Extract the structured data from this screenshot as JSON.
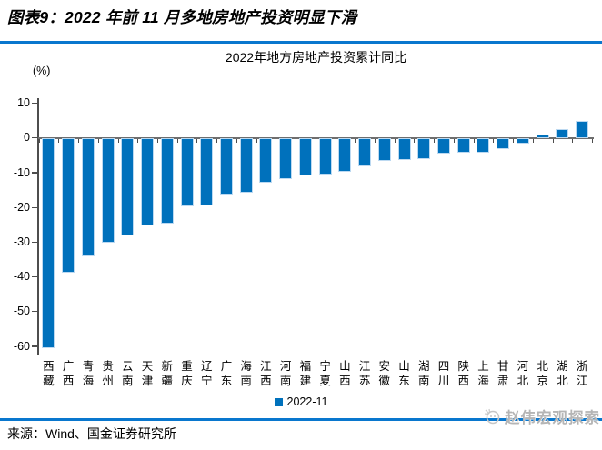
{
  "header": {
    "title": "图表9：2022 年前 11 月多地房地产投资明显下滑"
  },
  "chart": {
    "title": "2022年地方房地产投资累计同比",
    "unit": "(%)",
    "legend": "2022-11"
  },
  "chart_data": {
    "type": "bar",
    "title": "2022年地方房地产投资累计同比",
    "ylabel": "(%)",
    "legend_entries": [
      "2022-11"
    ],
    "legend_position": "bottom",
    "grid": false,
    "ylim": [
      -60,
      10
    ],
    "ytick_interval": 10,
    "categories": [
      "西藏",
      "广西",
      "青海",
      "贵州",
      "云南",
      "天津",
      "新疆",
      "重庆",
      "辽宁",
      "广东",
      "海南",
      "江西",
      "河南",
      "福建",
      "宁夏",
      "山西",
      "江苏",
      "安徽",
      "山东",
      "湖南",
      "四川",
      "陕西",
      "上海",
      "甘肃",
      "河北",
      "北京",
      "湖北",
      "浙江"
    ],
    "values": [
      -60.0,
      -38.2,
      -33.5,
      -29.7,
      -27.6,
      -24.6,
      -24.1,
      -19.2,
      -18.9,
      -15.7,
      -15.2,
      -12.4,
      -11.4,
      -10.2,
      -10.0,
      -9.3,
      -7.7,
      -6.2,
      -5.9,
      -5.5,
      -4.0,
      -3.8,
      -3.6,
      -2.6,
      -1.0,
      0.6,
      2.0,
      4.4
    ]
  },
  "footer": {
    "source": "来源：Wind、国金证券研究所"
  },
  "watermark": {
    "text": "赵伟宏观探索"
  },
  "colors": {
    "bar": "#0071BC",
    "bar_outline": "#BCD9F1",
    "rule_blue": "#0977CE",
    "axis": "#4D4D4D",
    "zero_line": "#6E6E6E",
    "watermark": "#B5B5B5"
  }
}
